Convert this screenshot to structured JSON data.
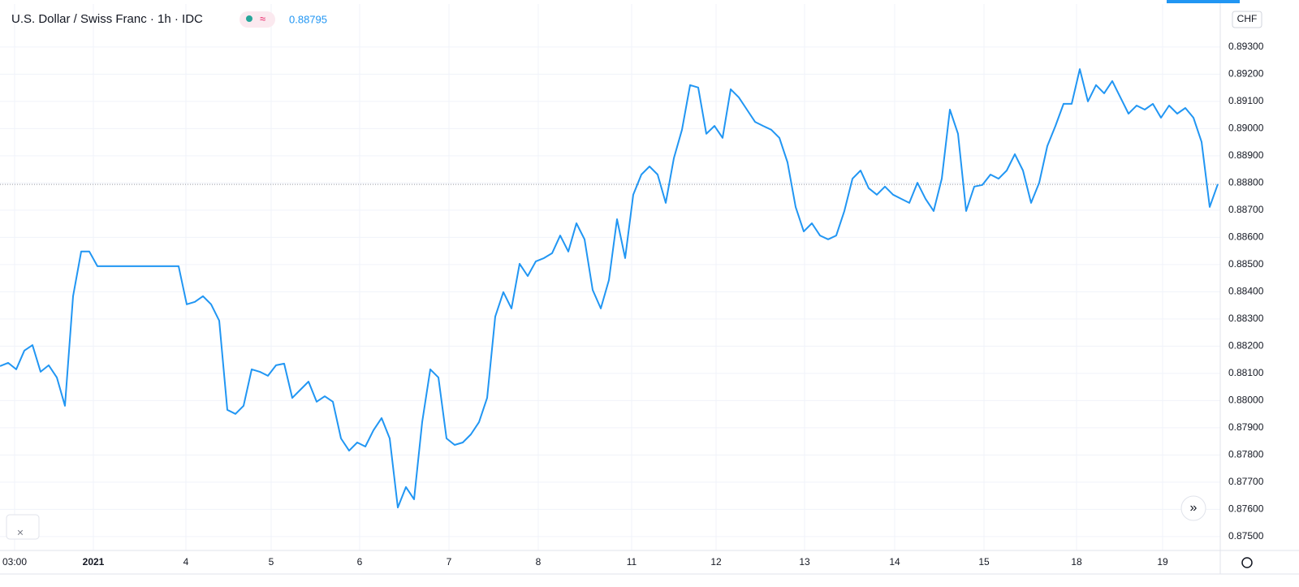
{
  "chart_data": {
    "type": "line",
    "title": "U.S. Dollar / Swiss Franc · 1h · IDC",
    "last_price": 0.88795,
    "currency": "CHF",
    "x": [
      0,
      1,
      2,
      3,
      4,
      5,
      6,
      7,
      8,
      9,
      10,
      11,
      12,
      13,
      14,
      15,
      16,
      17,
      18,
      19,
      20,
      21,
      22,
      23,
      24,
      25,
      26,
      27,
      28,
      29,
      30,
      31,
      32,
      33,
      34,
      35,
      36,
      37,
      38,
      39,
      40,
      41,
      42,
      43,
      44,
      45,
      46,
      47,
      48,
      49,
      50,
      51,
      52,
      53,
      54,
      55,
      56,
      57,
      58,
      59,
      60,
      61,
      62,
      63,
      64,
      65,
      66,
      67,
      68,
      69,
      70,
      71,
      72,
      73,
      74,
      75,
      76,
      77,
      78,
      79,
      80,
      81,
      82,
      83,
      84,
      85,
      86,
      87,
      88,
      89,
      90,
      91,
      92,
      93,
      94,
      95,
      96,
      97,
      98,
      99,
      100,
      101,
      102,
      103,
      104,
      105,
      106,
      107,
      108,
      109,
      110,
      111,
      112,
      113,
      114,
      115,
      116,
      117,
      118,
      119,
      120,
      121,
      122,
      123,
      124,
      125,
      126,
      127,
      128,
      129,
      130,
      131,
      132,
      133,
      134,
      135,
      136,
      137,
      138,
      139,
      140,
      141,
      142,
      143,
      144,
      145,
      146,
      147,
      148,
      149,
      150
    ],
    "series": [
      {
        "name": "U.S. Dollar / Swiss Franc",
        "color": "#2196f3",
        "values": [
          0.88127,
          0.88139,
          0.88115,
          0.88184,
          0.88204,
          0.88106,
          0.8813,
          0.88085,
          0.87981,
          0.88384,
          0.88548,
          0.88548,
          0.88494,
          0.88494,
          0.88494,
          0.88494,
          0.88494,
          0.88494,
          0.88494,
          0.88494,
          0.88494,
          0.88494,
          0.88494,
          0.88354,
          0.88363,
          0.88384,
          0.88354,
          0.88294,
          0.87966,
          0.87951,
          0.87981,
          0.88115,
          0.88106,
          0.88091,
          0.8813,
          0.88136,
          0.8801,
          0.8804,
          0.8807,
          0.87996,
          0.88016,
          0.87996,
          0.87861,
          0.87816,
          0.87846,
          0.87831,
          0.87891,
          0.87936,
          0.87861,
          0.87607,
          0.87682,
          0.87637,
          0.87921,
          0.88115,
          0.88085,
          0.87861,
          0.87837,
          0.87846,
          0.87876,
          0.87921,
          0.8801,
          0.88309,
          0.88399,
          0.88339,
          0.88503,
          0.88458,
          0.88512,
          0.88524,
          0.88542,
          0.88607,
          0.88548,
          0.88652,
          0.88593,
          0.88407,
          0.88339,
          0.88443,
          0.88667,
          0.88524,
          0.88757,
          0.88831,
          0.88861,
          0.88831,
          0.88727,
          0.88891,
          0.88996,
          0.8916,
          0.89151,
          0.88981,
          0.8901,
          0.88966,
          0.89145,
          0.89115,
          0.8907,
          0.89025,
          0.8901,
          0.88996,
          0.88966,
          0.88876,
          0.88712,
          0.88622,
          0.88652,
          0.88607,
          0.88593,
          0.88607,
          0.88697,
          0.88816,
          0.88846,
          0.88781,
          0.88757,
          0.88787,
          0.88757,
          0.88742,
          0.88727,
          0.88801,
          0.88742,
          0.88697,
          0.88816,
          0.8907,
          0.88981,
          0.88697,
          0.88787,
          0.88793,
          0.88831,
          0.88816,
          0.88846,
          0.88906,
          0.88846,
          0.88727,
          0.88801,
          0.88936,
          0.8901,
          0.89091,
          0.89091,
          0.89219,
          0.891,
          0.8916,
          0.8913,
          0.89175,
          0.89115,
          0.89055,
          0.89085,
          0.8907,
          0.89091,
          0.8904,
          0.89085,
          0.89055,
          0.89076,
          0.8904,
          0.88951,
          0.88712,
          0.88796
        ]
      }
    ],
    "xlim": [
      0,
      150.3
    ],
    "xticks": [
      {
        "value": 1.8,
        "label": "03:00"
      },
      {
        "value": 11.5,
        "label": "2021"
      },
      {
        "value": 22.9,
        "label": "4"
      },
      {
        "value": 33.4,
        "label": "5"
      },
      {
        "value": 44.3,
        "label": "6"
      },
      {
        "value": 55.3,
        "label": "7"
      },
      {
        "value": 66.3,
        "label": "8"
      },
      {
        "value": 77.8,
        "label": "11"
      },
      {
        "value": 88.2,
        "label": "12"
      },
      {
        "value": 99.1,
        "label": "13"
      },
      {
        "value": 110.2,
        "label": "14"
      },
      {
        "value": 121.2,
        "label": "15"
      },
      {
        "value": 132.6,
        "label": "18"
      },
      {
        "value": 143.2,
        "label": "19"
      }
    ],
    "ylim": [
      0.87449,
      0.89458
    ],
    "yticks": [
      {
        "value": 0.875,
        "label": "0.87500"
      },
      {
        "value": 0.876,
        "label": "0.87600"
      },
      {
        "value": 0.877,
        "label": "0.87700"
      },
      {
        "value": 0.878,
        "label": "0.87800"
      },
      {
        "value": 0.879,
        "label": "0.87900"
      },
      {
        "value": 0.88,
        "label": "0.88000"
      },
      {
        "value": 0.881,
        "label": "0.88100"
      },
      {
        "value": 0.882,
        "label": "0.88200"
      },
      {
        "value": 0.883,
        "label": "0.88300"
      },
      {
        "value": 0.884,
        "label": "0.88400"
      },
      {
        "value": 0.885,
        "label": "0.88500"
      },
      {
        "value": 0.886,
        "label": "0.88600"
      },
      {
        "value": 0.887,
        "label": "0.88700"
      },
      {
        "value": 0.888,
        "label": "0.88800"
      },
      {
        "value": 0.889,
        "label": "0.88900"
      },
      {
        "value": 0.89,
        "label": "0.89000"
      },
      {
        "value": 0.891,
        "label": "0.89100"
      },
      {
        "value": 0.892,
        "label": "0.89200"
      },
      {
        "value": 0.893,
        "label": "0.89300"
      }
    ],
    "grid": true
  }
}
